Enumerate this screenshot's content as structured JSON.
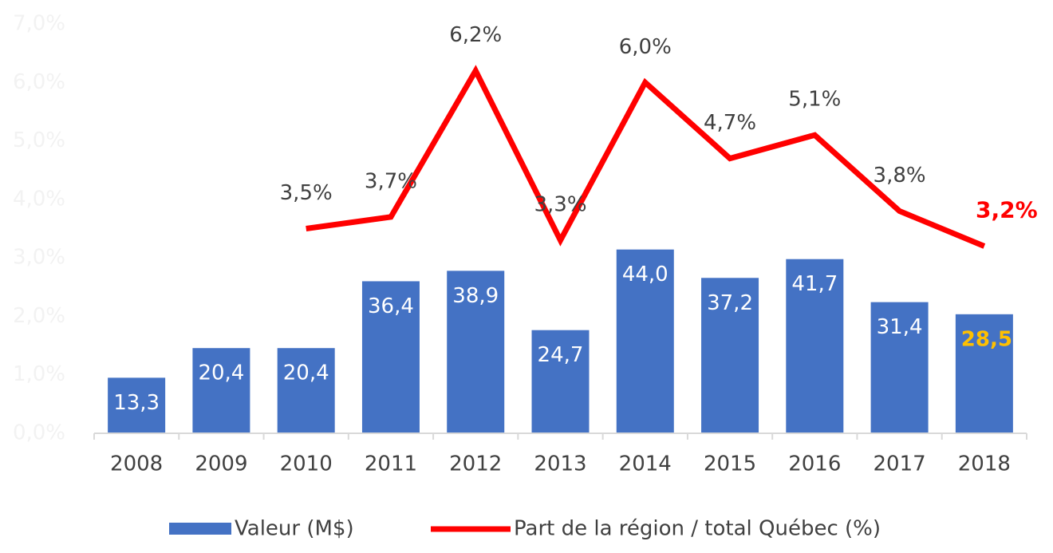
{
  "chart_data": {
    "type": "bar-line",
    "categories": [
      "2008",
      "2009",
      "2010",
      "2011",
      "2012",
      "2013",
      "2014",
      "2015",
      "2016",
      "2017",
      "2018"
    ],
    "ylim": [
      0,
      7
    ],
    "yticks": [
      {
        "value": 0,
        "label": "0,0%"
      },
      {
        "value": 1,
        "label": "1,0%"
      },
      {
        "value": 2,
        "label": "2,0%"
      },
      {
        "value": 3,
        "label": "3,0%"
      },
      {
        "value": 4,
        "label": "4,0%"
      },
      {
        "value": 5,
        "label": "5,0%"
      },
      {
        "value": 6,
        "label": "6,0%"
      },
      {
        "value": 7,
        "label": "7,0%"
      }
    ],
    "y2lim": [
      0,
      98
    ],
    "series": [
      {
        "name": "Valeur (M$)",
        "type": "bar",
        "axis": "y2",
        "color": "#4472c4",
        "highlight_label_color": "#ffc000",
        "values": [
          13.3,
          20.4,
          20.4,
          36.4,
          38.9,
          24.7,
          44.0,
          37.2,
          41.7,
          31.4,
          28.5
        ],
        "value_labels": [
          "13,3",
          "20,4",
          "20,4",
          "36,4",
          "38,9",
          "24,7",
          "44,0",
          "37,2",
          "41,7",
          "31,4",
          "28,5"
        ]
      },
      {
        "name": "Part de la région / total Québec (%)",
        "type": "line",
        "color": "#ff0000",
        "highlight_label_color": "#ff0000",
        "values": [
          null,
          null,
          3.5,
          3.7,
          6.2,
          3.3,
          6.0,
          4.7,
          5.1,
          3.8,
          3.2
        ],
        "value_labels": [
          null,
          null,
          "3,5%",
          "3,7%",
          "6,2%",
          "3,3%",
          "6,0%",
          "4,7%",
          "5,1%",
          "3,8%",
          "3,2%"
        ]
      }
    ]
  }
}
